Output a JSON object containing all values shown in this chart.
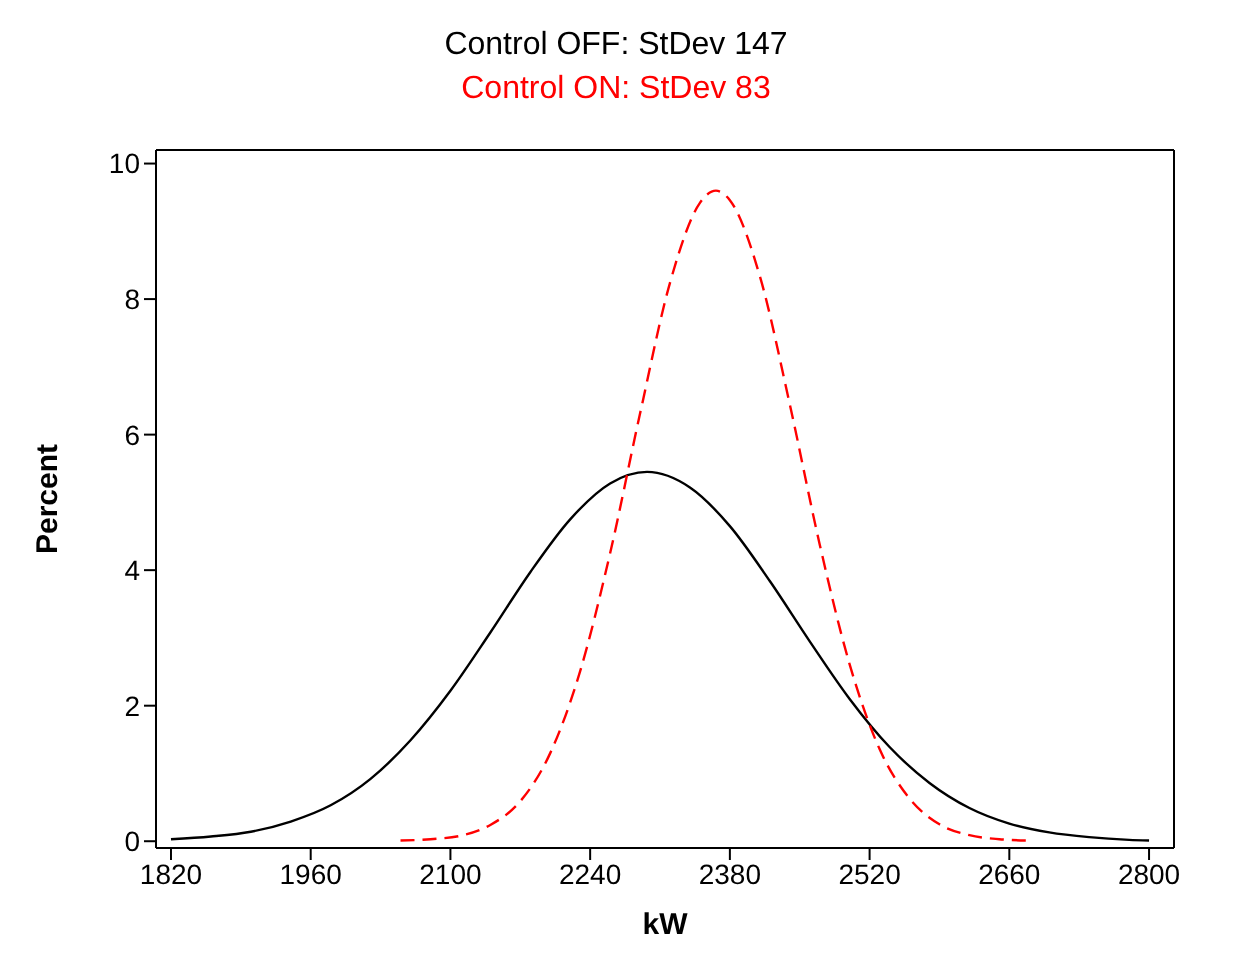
{
  "chart_data": {
    "type": "line",
    "xlabel": "kW",
    "ylabel": "Percent",
    "xlim": [
      1805,
      2825
    ],
    "xticks": [
      1820,
      1960,
      2100,
      2240,
      2380,
      2520,
      2660,
      2800
    ],
    "ylim": [
      -0.1,
      10.2
    ],
    "yticks": [
      0,
      2,
      4,
      6,
      8,
      10
    ],
    "grid": false,
    "legend": "top",
    "marker": "none",
    "series": [
      {
        "name": "Control OFF: StDev 147",
        "color": "#000000",
        "line_style": "solid",
        "x": [
          1820,
          1860,
          1900,
          1940,
          1980,
          2020,
          2060,
          2100,
          2140,
          2180,
          2220,
          2260,
          2297,
          2340,
          2380,
          2420,
          2460,
          2500,
          2540,
          2580,
          2620,
          2660,
          2700,
          2740,
          2780,
          2800
        ],
        "values": [
          0.03,
          0.07,
          0.14,
          0.29,
          0.53,
          0.92,
          1.49,
          2.22,
          3.08,
          3.97,
          4.75,
          5.28,
          5.45,
          5.22,
          4.65,
          3.84,
          2.95,
          2.1,
          1.39,
          0.86,
          0.49,
          0.26,
          0.13,
          0.06,
          0.02,
          0.01
        ]
      },
      {
        "name": "Control ON: StDev 83",
        "color": "#ff0000",
        "line_style": "dashed",
        "x": [
          2050,
          2080,
          2110,
          2140,
          2170,
          2200,
          2230,
          2260,
          2290,
          2320,
          2350,
          2366,
          2380,
          2410,
          2440,
          2470,
          2500,
          2530,
          2560,
          2590,
          2620,
          2650,
          2680
        ],
        "values": [
          0.01,
          0.03,
          0.08,
          0.24,
          0.59,
          1.3,
          2.51,
          4.25,
          6.31,
          8.24,
          9.42,
          9.6,
          9.46,
          8.34,
          6.45,
          4.38,
          2.61,
          1.36,
          0.63,
          0.25,
          0.09,
          0.03,
          0.01
        ]
      }
    ]
  }
}
